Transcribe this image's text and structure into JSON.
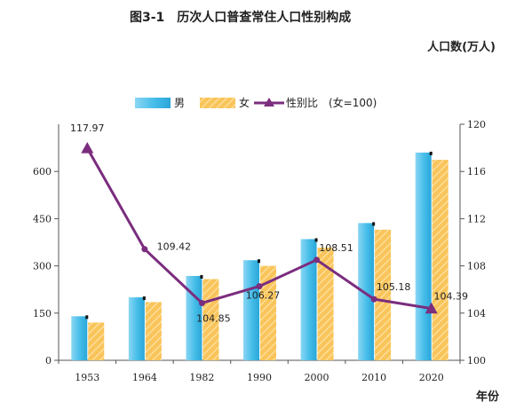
{
  "chart_data": {
    "type": "bar",
    "title": "图3-1　历次人口普查常住人口性别构成",
    "y_left_label": "人口数(万人)",
    "x_label": "年份",
    "categories": [
      "1953",
      "1964",
      "1982",
      "1990",
      "2000",
      "2010",
      "2020"
    ],
    "y_left_lim": [
      0,
      750
    ],
    "y_left_ticks": [
      0,
      150,
      300,
      450,
      600
    ],
    "y_right_lim": [
      100,
      120
    ],
    "y_right_ticks": [
      100,
      104,
      108,
      112,
      116,
      120
    ],
    "series": [
      {
        "name": "男",
        "type": "bar",
        "axis": "left",
        "color": "#4fc0ea",
        "values": [
          140,
          200,
          268,
          318,
          385,
          436,
          660
        ]
      },
      {
        "name": "女",
        "type": "bar",
        "axis": "left",
        "color": "#f7bf50",
        "values": [
          120,
          185,
          258,
          300,
          358,
          415,
          637
        ]
      },
      {
        "name": "性别比　(女=100)",
        "type": "line",
        "axis": "right",
        "color": "#7b2d7e",
        "values": [
          117.97,
          109.42,
          104.85,
          106.27,
          108.51,
          105.18,
          104.39
        ],
        "data_labels": [
          "117.97",
          "109.42",
          "104.85",
          "106.27",
          "108.51",
          "105.18",
          "104.39"
        ]
      }
    ],
    "legend_position": "top-center",
    "grid": false
  }
}
